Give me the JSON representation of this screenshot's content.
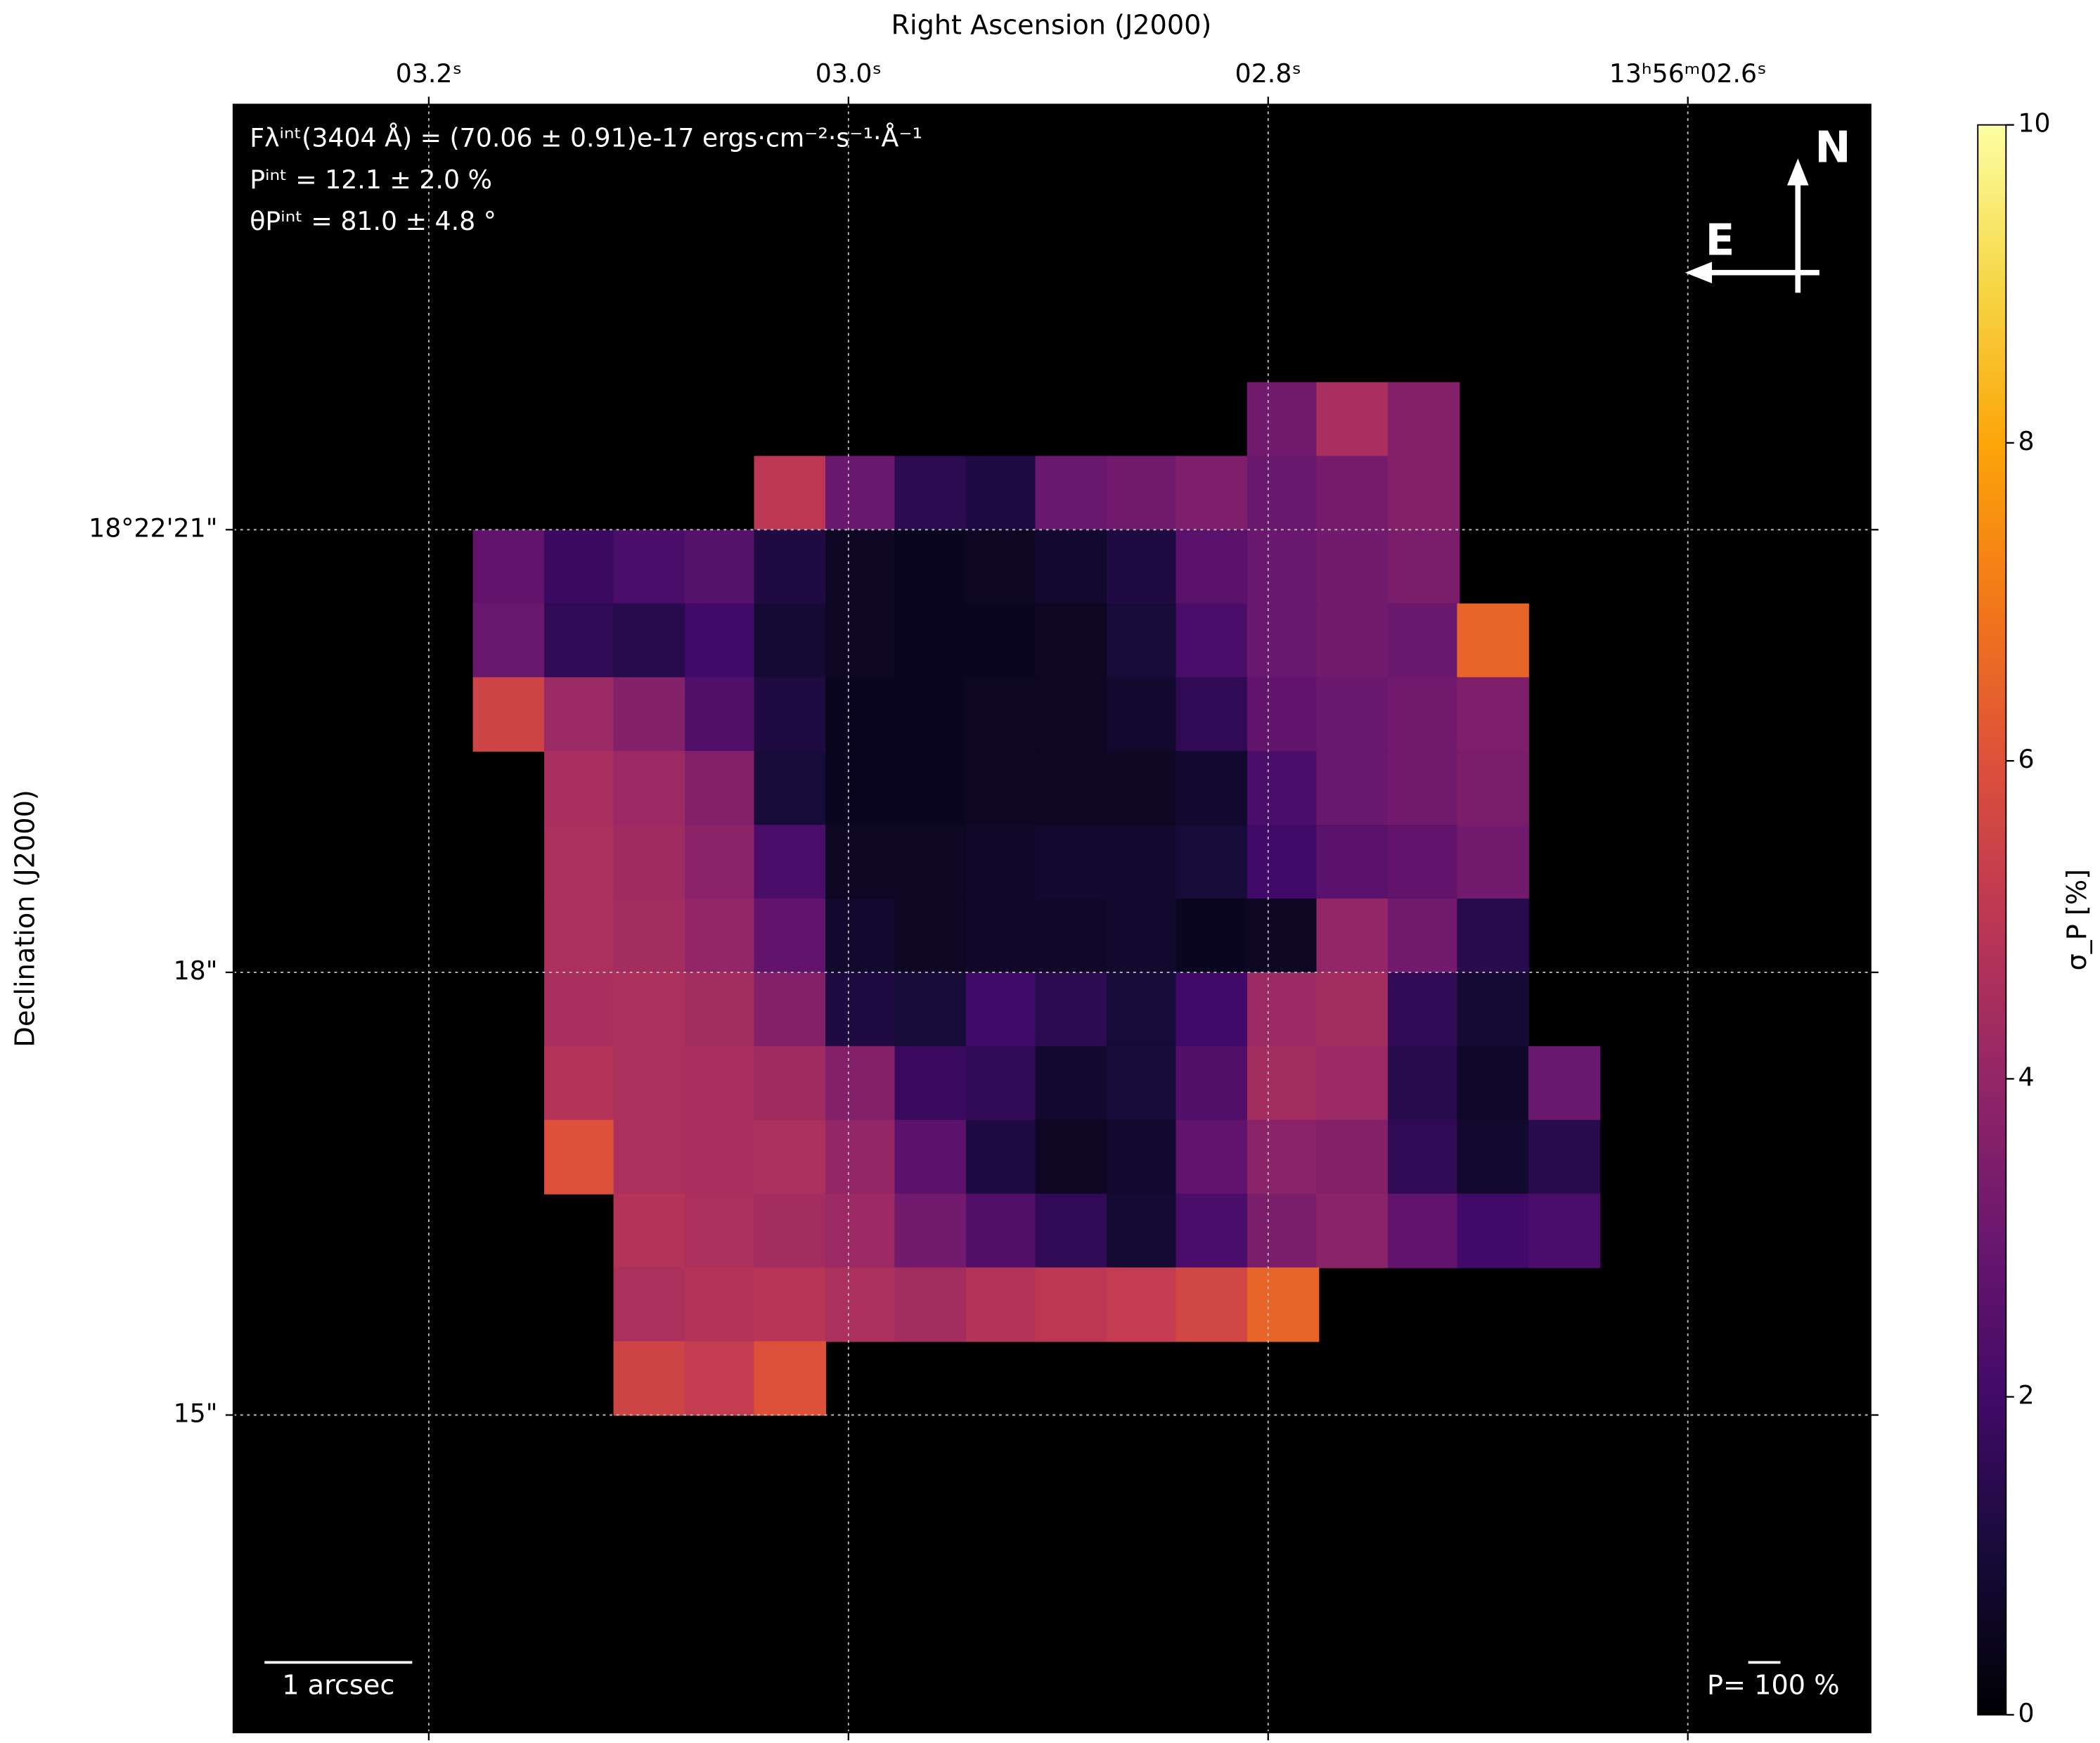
{
  "chart_data": {
    "type": "heatmap",
    "x_label": "Right Ascension (J2000)",
    "y_label": "Declination (J2000)",
    "xlim": [
      3.293,
      2.513
    ],
    "xticks": [
      {
        "value": 3.2,
        "label": "03.2ˢ"
      },
      {
        "value": 3.0,
        "label": "03.0ˢ"
      },
      {
        "value": 2.8,
        "label": "02.8ˢ"
      },
      {
        "value": 2.6,
        "label": "13ʰ56ᵐ02.6ˢ"
      }
    ],
    "ylim": [
      12.85,
      23.88
    ],
    "yticks": [
      {
        "value": 21,
        "label": "18°22'21\""
      },
      {
        "value": 18,
        "label": "18\""
      },
      {
        "value": 15,
        "label": "15\""
      }
    ],
    "grid": true,
    "colormap": "inferno",
    "zlim": [
      0,
      10
    ],
    "zticks": [
      0,
      2,
      4,
      6,
      8,
      10
    ],
    "colorbar_label": "σ_P [%]",
    "x": [
      3.162,
      3.128,
      3.095,
      3.061,
      3.028,
      2.994,
      2.961,
      2.927,
      2.894,
      2.86,
      2.827,
      2.793,
      2.76,
      2.726,
      2.693,
      2.659
    ],
    "y": [
      21.75,
      21.25,
      20.75,
      20.25,
      19.75,
      19.25,
      18.75,
      18.25,
      17.75,
      17.25,
      16.75,
      16.25,
      15.75,
      15.25
    ],
    "z": [
      [
        null,
        null,
        null,
        null,
        null,
        null,
        null,
        null,
        null,
        null,
        null,
        3.2,
        4.5,
        3.6,
        null,
        null
      ],
      [
        null,
        null,
        null,
        null,
        5.0,
        3.0,
        1.5,
        1.2,
        3.0,
        3.2,
        3.5,
        3.0,
        3.3,
        3.6,
        null,
        null
      ],
      [
        2.8,
        1.8,
        2.2,
        2.5,
        1.2,
        0.6,
        0.5,
        0.6,
        0.8,
        1.2,
        2.6,
        3.0,
        3.2,
        3.4,
        null,
        null
      ],
      [
        3.0,
        1.6,
        1.4,
        2.0,
        0.9,
        0.6,
        0.5,
        0.5,
        0.6,
        1.0,
        2.2,
        3.0,
        3.2,
        3.0,
        6.5,
        null
      ],
      [
        5.5,
        4.2,
        3.6,
        2.4,
        1.2,
        0.5,
        0.5,
        0.6,
        0.6,
        0.8,
        1.6,
        2.8,
        3.0,
        3.2,
        3.5,
        null
      ],
      [
        null,
        4.5,
        4.2,
        3.6,
        1.0,
        0.5,
        0.5,
        0.6,
        0.6,
        0.6,
        0.8,
        2.2,
        3.0,
        3.2,
        3.4,
        null
      ],
      [
        null,
        4.6,
        4.3,
        3.8,
        2.2,
        0.6,
        0.6,
        0.7,
        0.8,
        0.8,
        1.0,
        2.0,
        2.6,
        2.8,
        3.2,
        null
      ],
      [
        null,
        4.6,
        4.4,
        4.0,
        2.8,
        0.8,
        0.6,
        0.7,
        0.7,
        0.8,
        0.5,
        0.6,
        4.0,
        3.2,
        1.4,
        null
      ],
      [
        null,
        4.5,
        4.6,
        4.4,
        3.6,
        1.2,
        1.0,
        2.0,
        1.5,
        1.0,
        2.0,
        4.2,
        4.4,
        1.6,
        0.9,
        null
      ],
      [
        null,
        4.8,
        4.6,
        4.5,
        4.3,
        3.6,
        1.8,
        1.6,
        0.8,
        1.0,
        2.4,
        4.4,
        4.2,
        1.4,
        0.7,
        3.0
      ],
      [
        null,
        6.0,
        4.6,
        4.5,
        4.6,
        4.0,
        2.6,
        1.2,
        0.6,
        0.8,
        2.8,
        3.8,
        3.6,
        1.6,
        0.8,
        1.4
      ],
      [
        null,
        null,
        4.8,
        4.6,
        4.4,
        4.2,
        3.2,
        2.4,
        1.6,
        0.9,
        2.2,
        3.4,
        3.8,
        2.8,
        2.0,
        2.2
      ],
      [
        null,
        null,
        4.6,
        4.8,
        4.9,
        4.6,
        4.4,
        4.8,
        5.0,
        5.2,
        5.6,
        6.5,
        null,
        null,
        null,
        null
      ],
      [
        null,
        null,
        5.5,
        5.2,
        6.0,
        null,
        null,
        null,
        null,
        null,
        null,
        null,
        null,
        null,
        null,
        null
      ]
    ],
    "annotations": [
      "Fλⁱⁿᵗ(3404 Å) = (70.06 ± 0.91)e-17 ergs·cm⁻²·s⁻¹·Å⁻¹",
      "Pⁱⁿᵗ = 12.1 ± 2.0 %",
      "θPⁱⁿᵗ = 81.0 ± 4.8 °"
    ],
    "compass": [
      "N",
      "E"
    ],
    "scale_bar_label": "1 arcsec",
    "vector_scale_label": "P= 100 %"
  }
}
